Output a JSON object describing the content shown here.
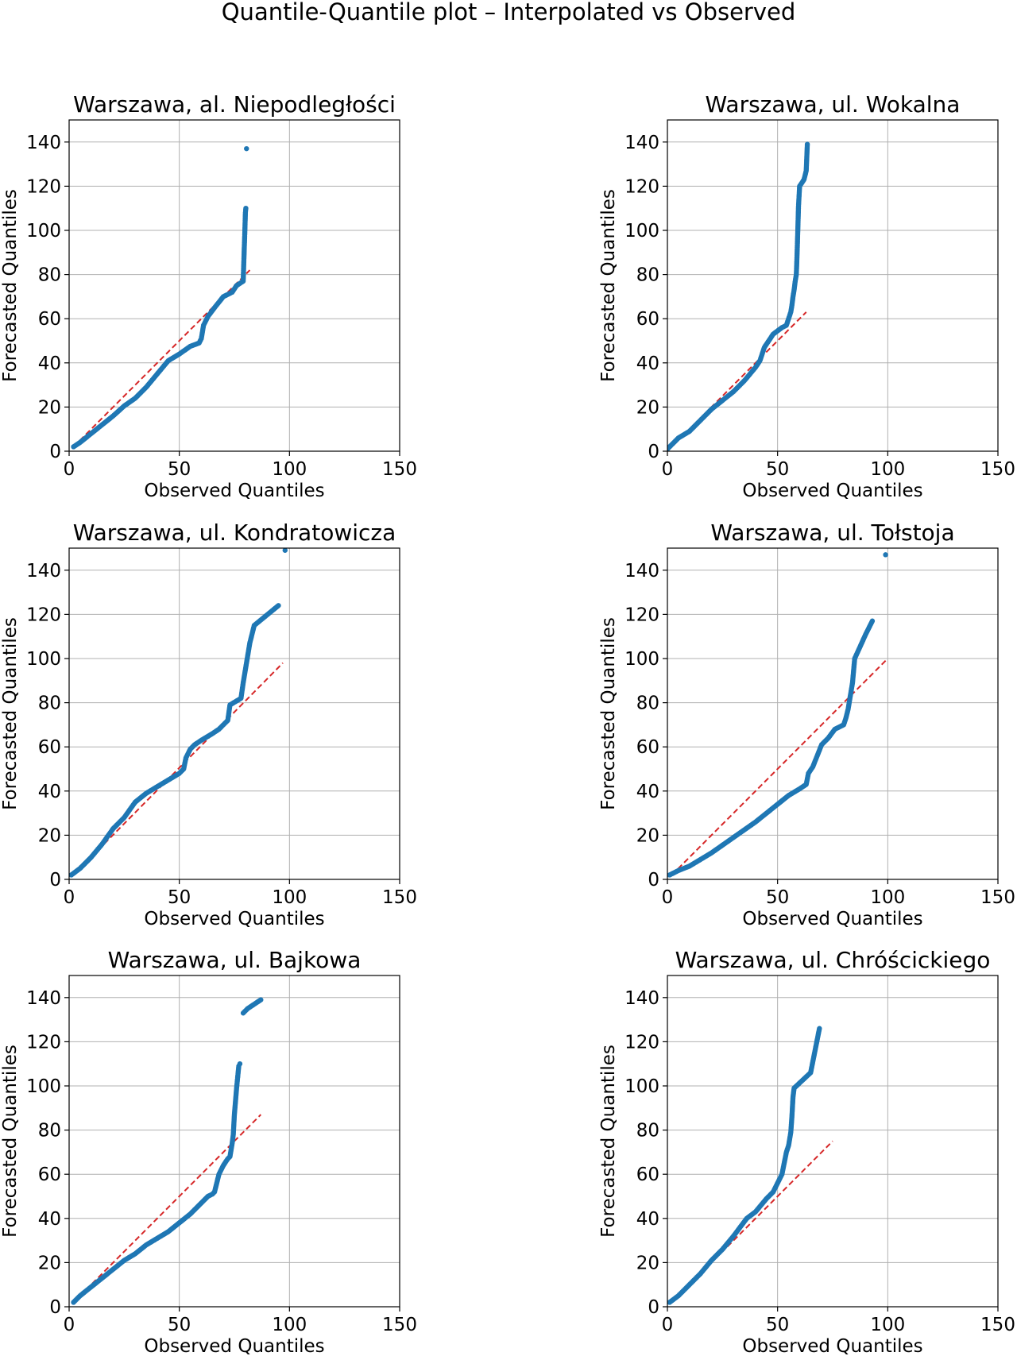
{
  "figure": {
    "title": "Quantile-Quantile plot – Interpolated vs Observed"
  },
  "colors": {
    "points": "#1f77b4",
    "reference_line": "#d62728",
    "grid": "#b0b0b0",
    "axes": "#000000"
  },
  "chart_data": [
    {
      "type": "scatter",
      "title": "Warszawa, al. Niepodległości",
      "xlabel": "Observed Quantiles",
      "ylabel": "Forecasted Quantiles",
      "xlim": [
        0,
        150
      ],
      "ylim": [
        0,
        150
      ],
      "xticks": [
        0,
        50,
        100,
        150
      ],
      "yticks": [
        0,
        20,
        40,
        60,
        80,
        100,
        120,
        140
      ],
      "grid": true,
      "reference_line": {
        "x": [
          2,
          82
        ],
        "y": [
          2,
          82
        ]
      },
      "series": [
        {
          "points": [
            [
              2,
              2
            ],
            [
              5,
              4
            ],
            [
              10,
              8
            ],
            [
              15,
              12
            ],
            [
              20,
              16
            ],
            [
              25,
              20.5
            ],
            [
              30,
              24
            ],
            [
              35,
              29
            ],
            [
              40,
              35
            ],
            [
              45,
              41
            ],
            [
              50,
              44
            ],
            [
              55,
              47.5
            ],
            [
              59,
              49
            ],
            [
              60,
              51
            ],
            [
              61,
              57
            ],
            [
              63,
              61
            ],
            [
              66,
              65
            ],
            [
              70,
              70
            ],
            [
              74,
              72
            ],
            [
              76,
              75
            ],
            [
              79,
              77
            ],
            [
              79.5,
              92.5
            ],
            [
              79.6,
              95
            ],
            [
              80,
              108
            ],
            [
              80.2,
              110
            ],
            [
              80.5,
              137
            ]
          ]
        }
      ]
    },
    {
      "type": "scatter",
      "title": "Warszawa, ul. Wokalna",
      "xlabel": "Observed Quantiles",
      "ylabel": "Forecasted Quantiles",
      "xlim": [
        0,
        150
      ],
      "ylim": [
        0,
        150
      ],
      "xticks": [
        0,
        50,
        100,
        150
      ],
      "yticks": [
        0,
        20,
        40,
        60,
        80,
        100,
        120,
        140
      ],
      "grid": true,
      "reference_line": {
        "x": [
          0,
          63
        ],
        "y": [
          0,
          63
        ]
      },
      "series": [
        {
          "points": [
            [
              0,
              1
            ],
            [
              2,
              3
            ],
            [
              5,
              6
            ],
            [
              10,
              9
            ],
            [
              15,
              14
            ],
            [
              20,
              19
            ],
            [
              25,
              23
            ],
            [
              30,
              27
            ],
            [
              35,
              32
            ],
            [
              40,
              38
            ],
            [
              42,
              41
            ],
            [
              43,
              44
            ],
            [
              44,
              47
            ],
            [
              46,
              50
            ],
            [
              48,
              53
            ],
            [
              52,
              56
            ],
            [
              54,
              57
            ],
            [
              55,
              60
            ],
            [
              56,
              63
            ],
            [
              56.5,
              66
            ],
            [
              57,
              70
            ],
            [
              57.5,
              73
            ],
            [
              58,
              77
            ],
            [
              58.5,
              80
            ],
            [
              58.7,
              85
            ],
            [
              59,
              94
            ],
            [
              59.5,
              111
            ],
            [
              60,
              120
            ],
            [
              62,
              123
            ],
            [
              63,
              127
            ],
            [
              63.5,
              139
            ]
          ]
        }
      ]
    },
    {
      "type": "scatter",
      "title": "Warszawa, ul. Kondratowicza",
      "xlabel": "Observed Quantiles",
      "ylabel": "Forecasted Quantiles",
      "xlim": [
        0,
        150
      ],
      "ylim": [
        0,
        150
      ],
      "xticks": [
        0,
        50,
        100,
        150
      ],
      "yticks": [
        0,
        20,
        40,
        60,
        80,
        100,
        120,
        140
      ],
      "grid": true,
      "reference_line": {
        "x": [
          2,
          97
        ],
        "y": [
          2,
          98
        ]
      },
      "series": [
        {
          "points": [
            [
              1,
              2
            ],
            [
              5,
              5
            ],
            [
              10,
              10
            ],
            [
              15,
              16
            ],
            [
              20,
              23
            ],
            [
              25,
              28
            ],
            [
              30,
              35
            ],
            [
              35,
              39
            ],
            [
              40,
              42
            ],
            [
              45,
              45
            ],
            [
              50,
              48
            ],
            [
              52,
              50
            ],
            [
              53,
              55
            ],
            [
              55,
              59
            ],
            [
              57,
              61
            ],
            [
              60,
              63
            ],
            [
              65,
              66
            ],
            [
              68,
              68
            ],
            [
              70,
              70
            ],
            [
              72,
              72
            ],
            [
              73,
              79
            ],
            [
              78,
              82
            ],
            [
              79,
              89
            ],
            [
              82,
              107
            ],
            [
              84,
              115
            ],
            [
              95,
              124
            ],
            [
              98,
              149
            ]
          ]
        }
      ]
    },
    {
      "type": "scatter",
      "title": "Warszawa, ul. Tołstoja",
      "xlabel": "Observed Quantiles",
      "ylabel": "Forecasted Quantiles",
      "xlim": [
        0,
        150
      ],
      "ylim": [
        0,
        150
      ],
      "xticks": [
        0,
        50,
        100,
        150
      ],
      "yticks": [
        0,
        20,
        40,
        60,
        80,
        100,
        120,
        140
      ],
      "grid": true,
      "reference_line": {
        "x": [
          2,
          100
        ],
        "y": [
          2,
          100
        ]
      },
      "series": [
        {
          "points": [
            [
              1,
              2
            ],
            [
              5,
              4
            ],
            [
              10,
              6
            ],
            [
              20,
              12
            ],
            [
              30,
              19
            ],
            [
              40,
              26
            ],
            [
              45,
              30
            ],
            [
              50,
              34
            ],
            [
              55,
              38
            ],
            [
              60,
              41
            ],
            [
              63,
              43
            ],
            [
              64,
              48
            ],
            [
              66,
              51
            ],
            [
              68,
              56
            ],
            [
              70,
              61
            ],
            [
              73,
              64
            ],
            [
              76,
              68
            ],
            [
              80,
              70
            ],
            [
              81,
              73
            ],
            [
              82,
              77
            ],
            [
              84,
              89
            ],
            [
              85,
              100
            ],
            [
              90,
              111
            ],
            [
              93,
              117
            ],
            [
              99,
              147
            ]
          ]
        }
      ]
    },
    {
      "type": "scatter",
      "title": "Warszawa, ul. Bajkowa",
      "xlabel": "Observed Quantiles",
      "ylabel": "Forecasted Quantiles",
      "xlim": [
        0,
        150
      ],
      "ylim": [
        0,
        150
      ],
      "xticks": [
        0,
        50,
        100,
        150
      ],
      "yticks": [
        0,
        20,
        40,
        60,
        80,
        100,
        120,
        140
      ],
      "grid": true,
      "reference_line": {
        "x": [
          2,
          87
        ],
        "y": [
          2,
          87
        ]
      },
      "series": [
        {
          "points": [
            [
              2,
              2
            ],
            [
              5,
              5
            ],
            [
              10,
              9
            ],
            [
              15,
              13
            ],
            [
              20,
              17
            ],
            [
              25,
              21
            ],
            [
              30,
              24
            ],
            [
              35,
              28
            ],
            [
              40,
              31
            ],
            [
              45,
              34
            ],
            [
              50,
              38
            ],
            [
              55,
              42
            ],
            [
              60,
              47
            ],
            [
              63,
              50
            ],
            [
              65,
              51
            ],
            [
              66,
              52
            ],
            [
              67,
              56
            ],
            [
              68,
              60
            ],
            [
              70,
              64
            ],
            [
              72,
              67
            ],
            [
              73,
              68
            ],
            [
              74,
              74
            ],
            [
              74.5,
              78
            ],
            [
              75,
              87
            ],
            [
              76,
              99
            ],
            [
              77,
              109
            ],
            [
              77.5,
              110
            ],
            [
              79,
              133
            ],
            [
              80,
              134
            ],
            [
              81,
              135
            ],
            [
              87,
              139
            ]
          ]
        }
      ]
    },
    {
      "type": "scatter",
      "title": "Warszawa, ul. Chróścickiego",
      "xlabel": "Observed Quantiles",
      "ylabel": "Forecasted Quantiles",
      "xlim": [
        0,
        150
      ],
      "ylim": [
        0,
        150
      ],
      "xticks": [
        0,
        50,
        100,
        150
      ],
      "yticks": [
        0,
        20,
        40,
        60,
        80,
        100,
        120,
        140
      ],
      "grid": true,
      "reference_line": {
        "x": [
          2,
          75
        ],
        "y": [
          2,
          75
        ]
      },
      "series": [
        {
          "points": [
            [
              1,
              2
            ],
            [
              5,
              5
            ],
            [
              10,
              10
            ],
            [
              15,
              15
            ],
            [
              20,
              21
            ],
            [
              25,
              26
            ],
            [
              30,
              32
            ],
            [
              33,
              36
            ],
            [
              36,
              40
            ],
            [
              40,
              43
            ],
            [
              45,
              49
            ],
            [
              48,
              52
            ],
            [
              50,
              56
            ],
            [
              52,
              60
            ],
            [
              53,
              65
            ],
            [
              54,
              70
            ],
            [
              55,
              73
            ],
            [
              55.5,
              76
            ],
            [
              56,
              79
            ],
            [
              56.5,
              86
            ],
            [
              57,
              95
            ],
            [
              57.5,
              99
            ],
            [
              65,
              106
            ],
            [
              69,
              126
            ]
          ]
        }
      ]
    }
  ]
}
